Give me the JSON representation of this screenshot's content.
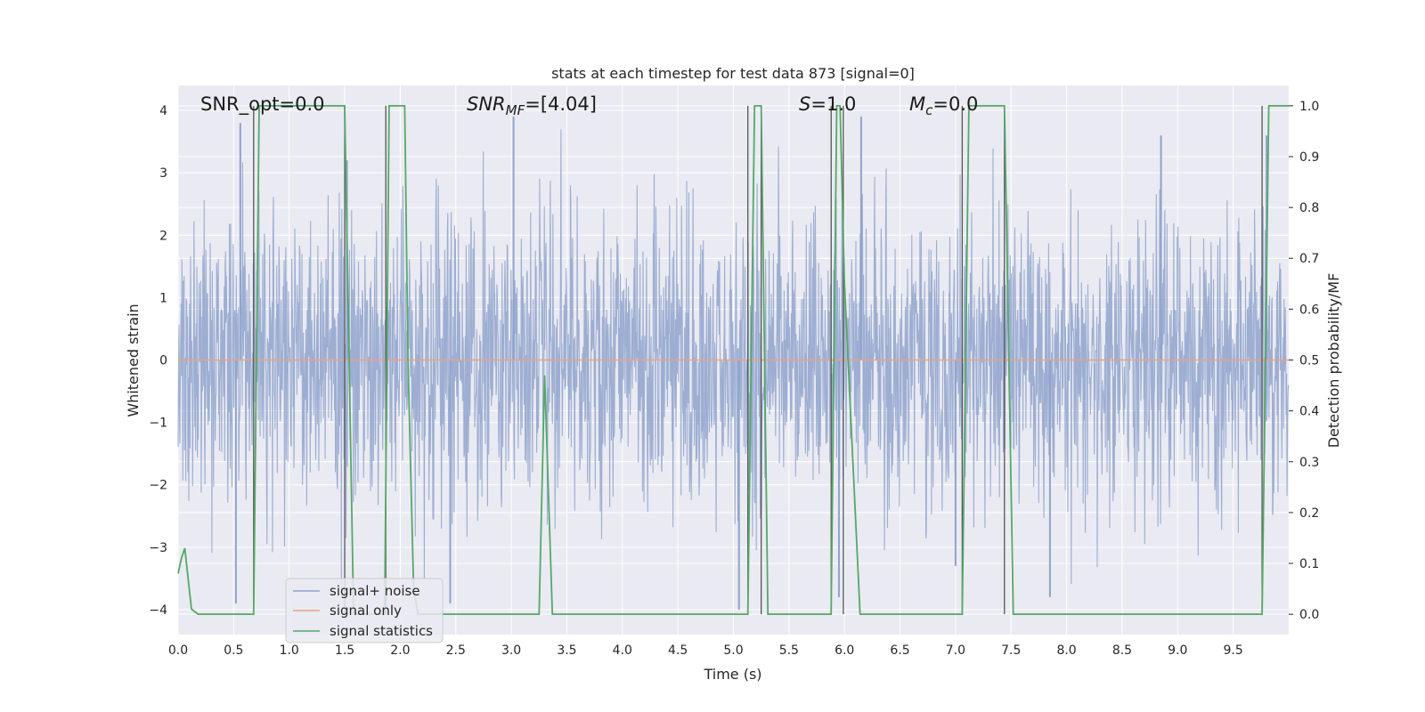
{
  "chart_data": {
    "type": "line",
    "title": "stats at each timestep for test data 873 [signal=0]",
    "xlabel": "Time (s)",
    "ylabel": "Whitened strain",
    "y2label": "Detection probability/MF",
    "xlim": [
      0.0,
      10.0
    ],
    "ylim": [
      -4.4,
      4.4
    ],
    "y2lim": [
      -0.04,
      1.04
    ],
    "x_ticks": [
      "0.0",
      "0.5",
      "1.0",
      "1.5",
      "2.0",
      "2.5",
      "3.0",
      "3.5",
      "4.0",
      "4.5",
      "5.0",
      "5.5",
      "6.0",
      "6.5",
      "7.0",
      "7.5",
      "8.0",
      "8.5",
      "9.0",
      "9.5"
    ],
    "y_ticks": [
      "4",
      "3",
      "2",
      "1",
      "0",
      "−1",
      "−2",
      "−3",
      "−4"
    ],
    "y2_ticks": [
      "1.0",
      "0.9",
      "0.8",
      "0.7",
      "0.6",
      "0.5",
      "0.4",
      "0.3",
      "0.2",
      "0.1",
      "0.0"
    ],
    "grid": true,
    "legend_position": "lower-left",
    "annotations": {
      "snr_opt": "SNR_opt=0.0",
      "snr_mf_main": "SNR",
      "snr_mf_sub": "MF",
      "snr_mf_value": "=[4.04]",
      "s_symbol": "S",
      "s_value": "=1.0",
      "mc_symbol": "M",
      "mc_sub": "c",
      "mc_value": "=0.0"
    },
    "series": [
      {
        "name": "signal+ noise",
        "color": "#8fa3cc",
        "envelope": {
          "typical_abs": 1.6,
          "peak_abs": 4.0
        },
        "extreme_peaks": [
          {
            "x": 0.56,
            "y": 3.8
          },
          {
            "x": 1.52,
            "y": 3.2
          },
          {
            "x": 3.02,
            "y": 3.9
          },
          {
            "x": 5.05,
            "y": -4.0
          },
          {
            "x": 5.95,
            "y": -3.8
          },
          {
            "x": 6.15,
            "y": 3.9
          },
          {
            "x": 7.0,
            "y": -3.3
          },
          {
            "x": 7.85,
            "y": -3.8
          },
          {
            "x": 8.85,
            "y": 3.6
          },
          {
            "x": 0.52,
            "y": -3.9
          },
          {
            "x": 2.45,
            "y": -3.9
          },
          {
            "x": 9.8,
            "y": 3.6
          }
        ]
      },
      {
        "name": "signal only",
        "color": "#e8a285",
        "x": [
          0.0,
          10.0
        ],
        "y": [
          0.0,
          0.0
        ]
      },
      {
        "name": "signal statistics",
        "color": "#55a868",
        "axis": "right",
        "x": [
          0.0,
          0.03,
          0.06,
          0.12,
          0.18,
          0.5,
          0.68,
          0.73,
          1.5,
          1.58,
          1.86,
          1.9,
          2.04,
          2.07,
          2.12,
          2.16,
          3.25,
          3.3,
          3.37,
          3.42,
          5.13,
          5.19,
          5.25,
          5.31,
          5.88,
          5.93,
          5.96,
          6.0,
          6.14,
          7.06,
          7.12,
          7.44,
          7.52,
          9.76,
          9.82,
          10.0
        ],
        "y": [
          0.08,
          0.11,
          0.13,
          0.01,
          0.0,
          0.0,
          0.0,
          1.0,
          1.0,
          0.0,
          0.0,
          1.0,
          1.0,
          0.5,
          0.05,
          0.0,
          0.0,
          0.47,
          0.0,
          0.0,
          0.0,
          1.0,
          1.0,
          0.0,
          0.0,
          1.0,
          1.0,
          0.65,
          0.0,
          0.0,
          1.0,
          1.0,
          0.0,
          0.0,
          1.0,
          1.0
        ]
      }
    ],
    "vertical_lines_x": [
      0.68,
      1.5,
      1.87,
      5.13,
      5.25,
      5.88,
      5.99,
      7.06,
      7.44,
      9.76
    ]
  }
}
